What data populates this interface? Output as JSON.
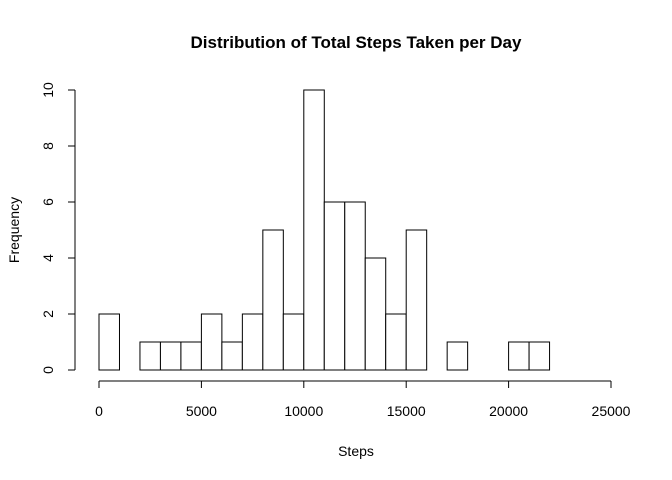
{
  "chart_data": {
    "type": "bar",
    "title": "Distribution of Total Steps Taken per Day",
    "xlabel": "Steps",
    "ylabel": "Frequency",
    "bin_width": 1000,
    "bins_start": [
      0,
      1000,
      2000,
      3000,
      4000,
      5000,
      6000,
      7000,
      8000,
      9000,
      10000,
      11000,
      12000,
      13000,
      14000,
      15000,
      16000,
      17000,
      18000,
      19000,
      20000,
      21000,
      22000,
      23000,
      24000
    ],
    "values": [
      2,
      0,
      1,
      1,
      1,
      2,
      1,
      2,
      5,
      2,
      10,
      6,
      6,
      4,
      2,
      5,
      0,
      1,
      0,
      0,
      1,
      1,
      0,
      0,
      0
    ],
    "xlim": [
      0,
      25000
    ],
    "ylim": [
      0,
      10
    ],
    "x_ticks": [
      "0",
      "5000",
      "10000",
      "15000",
      "20000",
      "25000"
    ],
    "y_ticks": [
      "0",
      "2",
      "4",
      "6",
      "8",
      "10"
    ],
    "grid": false,
    "legend": "none"
  }
}
